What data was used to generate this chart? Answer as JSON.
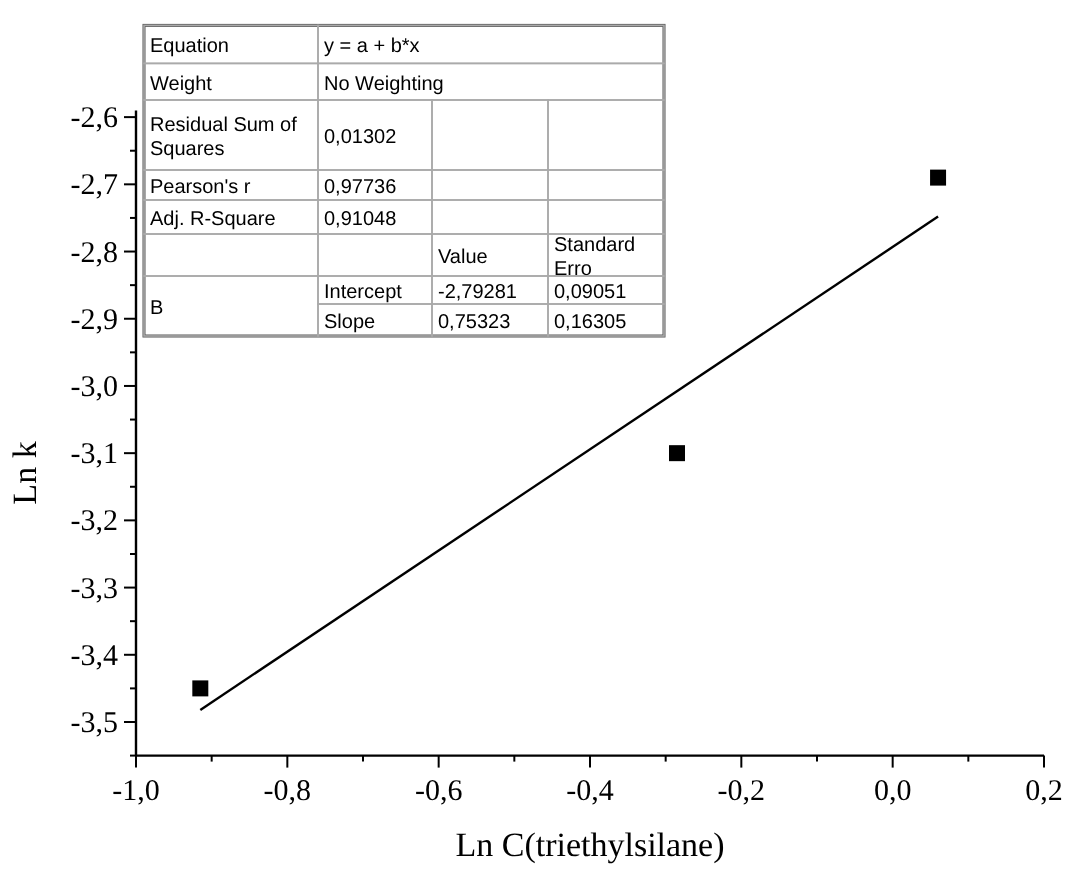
{
  "chart_data": {
    "type": "scatter",
    "xlabel": "Ln C(triethylsilane)",
    "ylabel": "Ln k",
    "marker": "square",
    "grid": false,
    "xlim": [
      -1.0,
      0.2
    ],
    "ylim": [
      -3.55,
      -2.59
    ],
    "xticks": [
      {
        "value": -1.0,
        "label": "-1,0"
      },
      {
        "value": -0.9,
        "label": null
      },
      {
        "value": -0.8,
        "label": "-0,8"
      },
      {
        "value": -0.7,
        "label": null
      },
      {
        "value": -0.6,
        "label": "-0,6"
      },
      {
        "value": -0.5,
        "label": null
      },
      {
        "value": -0.4,
        "label": "-0,4"
      },
      {
        "value": -0.3,
        "label": null
      },
      {
        "value": -0.2,
        "label": "-0,2"
      },
      {
        "value": -0.1,
        "label": null
      },
      {
        "value": 0.0,
        "label": "0,0"
      },
      {
        "value": 0.1,
        "label": null
      },
      {
        "value": 0.2,
        "label": "0,2"
      }
    ],
    "yticks": [
      {
        "value": -3.55,
        "label": null
      },
      {
        "value": -3.5,
        "label": "-3,5"
      },
      {
        "value": -3.45,
        "label": null
      },
      {
        "value": -3.4,
        "label": "-3,4"
      },
      {
        "value": -3.35,
        "label": null
      },
      {
        "value": -3.3,
        "label": "-3,3"
      },
      {
        "value": -3.25,
        "label": null
      },
      {
        "value": -3.2,
        "label": "-3,2"
      },
      {
        "value": -3.15,
        "label": null
      },
      {
        "value": -3.1,
        "label": "-3,1"
      },
      {
        "value": -3.05,
        "label": null
      },
      {
        "value": -3.0,
        "label": "-3,0"
      },
      {
        "value": -2.95,
        "label": null
      },
      {
        "value": -2.9,
        "label": "-2,9"
      },
      {
        "value": -2.85,
        "label": null
      },
      {
        "value": -2.8,
        "label": "-2,8"
      },
      {
        "value": -2.75,
        "label": null
      },
      {
        "value": -2.7,
        "label": "-2,7"
      },
      {
        "value": -2.65,
        "label": null
      },
      {
        "value": -2.6,
        "label": "-2,6"
      }
    ],
    "series": [
      {
        "color": "#000000",
        "x": [
          -0.915,
          -0.285,
          0.06
        ],
        "values": [
          -3.45,
          -3.1,
          -2.69
        ]
      },
      {
        "type": "line",
        "marker": "none",
        "color": "#000000",
        "x": [
          -0.915,
          0.06
        ],
        "values": [
          -3.482,
          -2.748
        ]
      }
    ],
    "annotations": [
      "Equation",
      "y = a + b*x",
      "Weight",
      "No Weighting",
      "Residual Sum of Squares",
      "0,01302",
      "Pearson's r",
      "0,97736",
      "Adj. R-Square",
      "0,91048",
      "Value",
      "Standard Erro",
      "B",
      "Intercept",
      "-2,79281",
      "0,09051",
      "Slope",
      "0,75323",
      "0,16305"
    ]
  }
}
